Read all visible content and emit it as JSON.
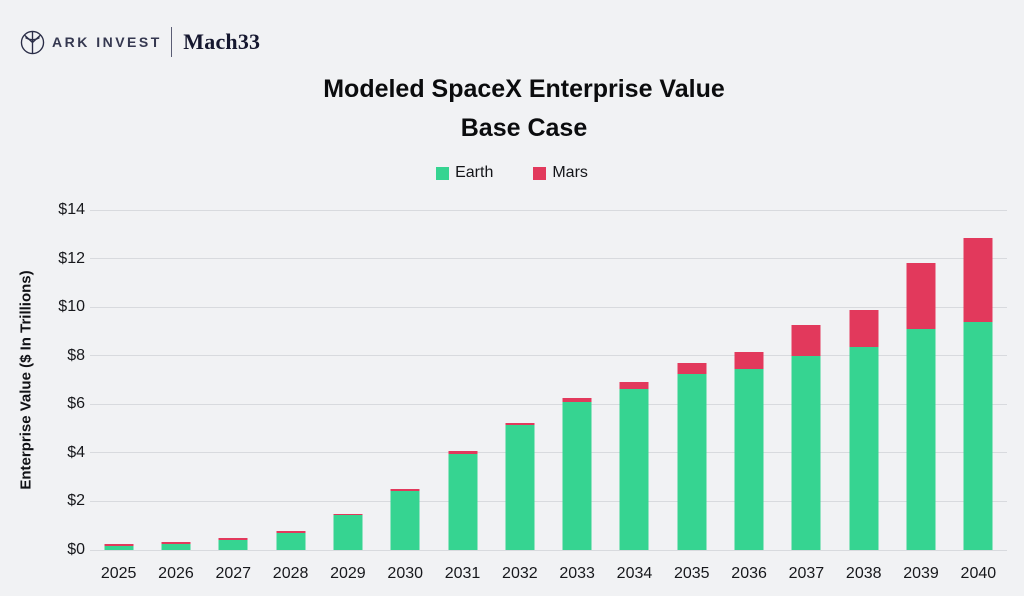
{
  "header": {
    "brand_primary": "ARK INVEST",
    "brand_secondary": "Mach33"
  },
  "title": {
    "line1": "Modeled SpaceX Enterprise Value",
    "line2": "Base Case"
  },
  "chart_data": {
    "type": "bar",
    "stacked": true,
    "title": "Modeled SpaceX Enterprise Value",
    "subtitle": "Base Case",
    "xlabel": "",
    "ylabel": "Enterprise Value ($ In Trillions)",
    "ylim": [
      0,
      14
    ],
    "yticks": [
      0,
      2,
      4,
      6,
      8,
      10,
      12,
      14
    ],
    "ytick_labels": [
      "$0",
      "$2",
      "$4",
      "$6",
      "$8",
      "$10",
      "$12",
      "$14"
    ],
    "grid": "horizontal",
    "legend_position": "top-center",
    "categories": [
      "2025",
      "2026",
      "2027",
      "2028",
      "2029",
      "2030",
      "2031",
      "2032",
      "2033",
      "2034",
      "2035",
      "2036",
      "2037",
      "2038",
      "2039",
      "2040"
    ],
    "series": [
      {
        "name": "Earth",
        "color": "#36d491",
        "values": [
          0.17,
          0.26,
          0.41,
          0.7,
          1.43,
          2.45,
          3.97,
          5.15,
          6.08,
          6.65,
          7.25,
          7.45,
          8.0,
          8.35,
          9.1,
          9.4
        ]
      },
      {
        "name": "Mars",
        "color": "#e2395c",
        "values": [
          0.03,
          0.04,
          0.05,
          0.06,
          0.07,
          0.08,
          0.09,
          0.1,
          0.18,
          0.25,
          0.45,
          0.7,
          1.25,
          1.55,
          2.7,
          3.45
        ]
      }
    ]
  },
  "colors": {
    "background": "#f1f2f4",
    "gridline": "#d8dade",
    "earth": "#36d491",
    "mars": "#e2395c",
    "text": "#131417",
    "brand_navy": "#2a2d47"
  }
}
